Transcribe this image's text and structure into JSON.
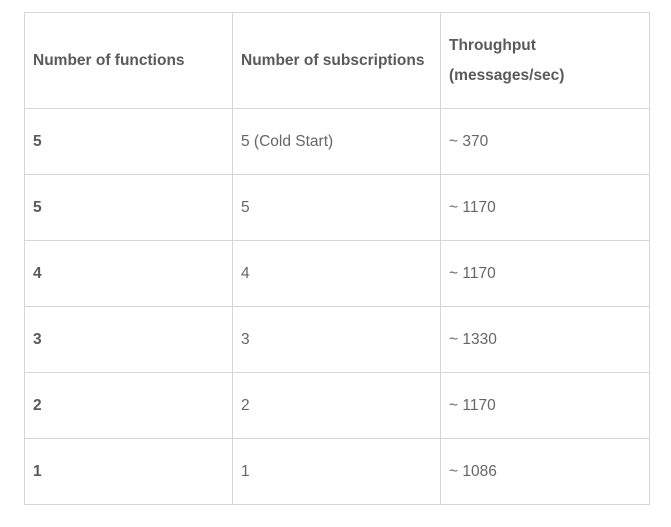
{
  "table": {
    "headers": [
      "Number of functions",
      "Number of subscriptions",
      "Throughput (messages/sec)"
    ],
    "rows": [
      [
        "5",
        "5 (Cold Start)",
        "~ 370"
      ],
      [
        "5",
        "5",
        "~ 1170"
      ],
      [
        "4",
        "4",
        "~ 1170"
      ],
      [
        "3",
        "3",
        "~ 1330"
      ],
      [
        "2",
        "2",
        "~ 1170"
      ],
      [
        "1",
        "1",
        "~ 1086"
      ]
    ]
  }
}
